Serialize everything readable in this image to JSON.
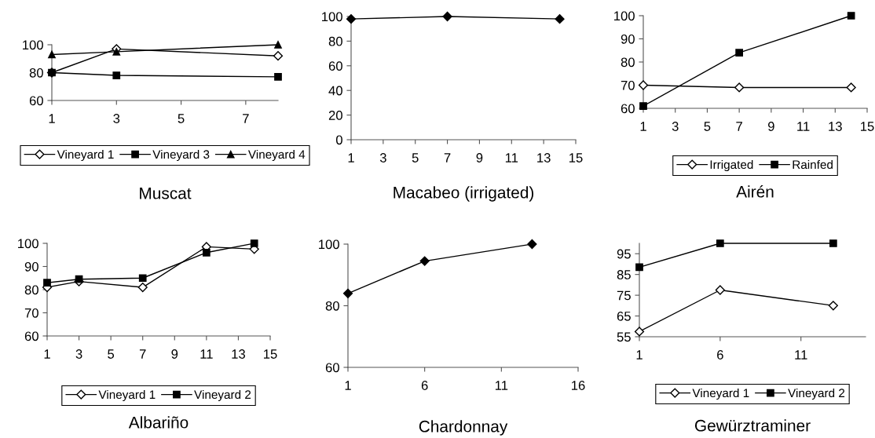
{
  "chart_data": [
    {
      "type": "line",
      "title": "Muscat",
      "xlim": [
        1,
        8
      ],
      "xticks": [
        1,
        3,
        5,
        7
      ],
      "ylim": [
        60,
        100
      ],
      "yticks": [
        60,
        80,
        100
      ],
      "grid": false,
      "legend": "bottom",
      "series": [
        {
          "name": "Vineyard 1",
          "color": "#ffffff",
          "marker": "diamond",
          "x": [
            1,
            3,
            8
          ],
          "values": [
            80,
            97,
            92
          ]
        },
        {
          "name": "Vineyard 3",
          "color": "#000000",
          "marker": "square",
          "x": [
            1,
            3,
            8
          ],
          "values": [
            80,
            78,
            77
          ]
        },
        {
          "name": "Vineyard 4",
          "color": "#000000",
          "marker": "triangle",
          "x": [
            1,
            3,
            8
          ],
          "values": [
            93,
            95,
            100
          ]
        }
      ]
    },
    {
      "type": "line",
      "title": "Macabeo (irrigated)",
      "xlim": [
        1,
        15
      ],
      "xticks": [
        1,
        3,
        5,
        7,
        9,
        11,
        13,
        15
      ],
      "ylim": [
        0,
        100
      ],
      "yticks": [
        0,
        20,
        40,
        60,
        80,
        100
      ],
      "grid": false,
      "legend": false,
      "series": [
        {
          "color": "#000000",
          "marker": "diamond",
          "x": [
            1,
            7,
            14
          ],
          "values": [
            98,
            100,
            98
          ]
        }
      ]
    },
    {
      "type": "line",
      "title": "Airén",
      "xlim": [
        1,
        15
      ],
      "xticks": [
        1,
        3,
        5,
        7,
        9,
        11,
        13,
        15
      ],
      "ylim": [
        60,
        100
      ],
      "yticks": [
        60,
        70,
        80,
        90,
        100
      ],
      "grid": false,
      "legend": "bottom",
      "series": [
        {
          "name": "Irrigated",
          "color": "#ffffff",
          "marker": "diamond",
          "x": [
            1,
            7,
            14
          ],
          "values": [
            70,
            69,
            69
          ]
        },
        {
          "name": "Rainfed",
          "color": "#000000",
          "marker": "square",
          "x": [
            1,
            7,
            14
          ],
          "values": [
            61,
            84,
            100
          ]
        }
      ]
    },
    {
      "type": "line",
      "title": "Albariño",
      "xlim": [
        1,
        15
      ],
      "xticks": [
        1,
        3,
        5,
        7,
        9,
        11,
        13,
        15
      ],
      "ylim": [
        60,
        100
      ],
      "yticks": [
        60,
        70,
        80,
        90,
        100
      ],
      "grid": false,
      "legend": "bottom",
      "series": [
        {
          "name": "Vineyard 1",
          "color": "#ffffff",
          "marker": "diamond",
          "x": [
            1,
            3,
            7,
            11,
            14
          ],
          "values": [
            81,
            83.5,
            81,
            98.5,
            97.5
          ]
        },
        {
          "name": "Vineyard 2",
          "color": "#000000",
          "marker": "square",
          "x": [
            1,
            3,
            7,
            11,
            14
          ],
          "values": [
            83,
            84.5,
            85,
            96,
            100
          ]
        }
      ]
    },
    {
      "type": "line",
      "title": "Chardonnay",
      "xlim": [
        1,
        16
      ],
      "xticks": [
        1,
        6,
        11,
        16
      ],
      "ylim": [
        60,
        100
      ],
      "yticks": [
        60,
        80,
        100
      ],
      "grid": false,
      "legend": false,
      "series": [
        {
          "color": "#000000",
          "marker": "diamond",
          "x": [
            1,
            6,
            13
          ],
          "values": [
            84,
            94.5,
            100
          ]
        }
      ]
    },
    {
      "type": "line",
      "title": "Gewürztraminer",
      "xlim": [
        1,
        15
      ],
      "xticks": [
        1,
        6,
        11
      ],
      "ylim": [
        55,
        100
      ],
      "yticks": [
        55,
        65,
        75,
        85,
        95
      ],
      "grid": false,
      "legend": "bottom",
      "series": [
        {
          "name": "Vineyard 1",
          "color": "#ffffff",
          "marker": "diamond",
          "x": [
            1,
            6,
            13
          ],
          "values": [
            57.5,
            77.5,
            70
          ]
        },
        {
          "name": "Vineyard 2",
          "color": "#000000",
          "marker": "square",
          "x": [
            1,
            6,
            13
          ],
          "values": [
            88.5,
            100,
            100
          ]
        }
      ]
    }
  ]
}
